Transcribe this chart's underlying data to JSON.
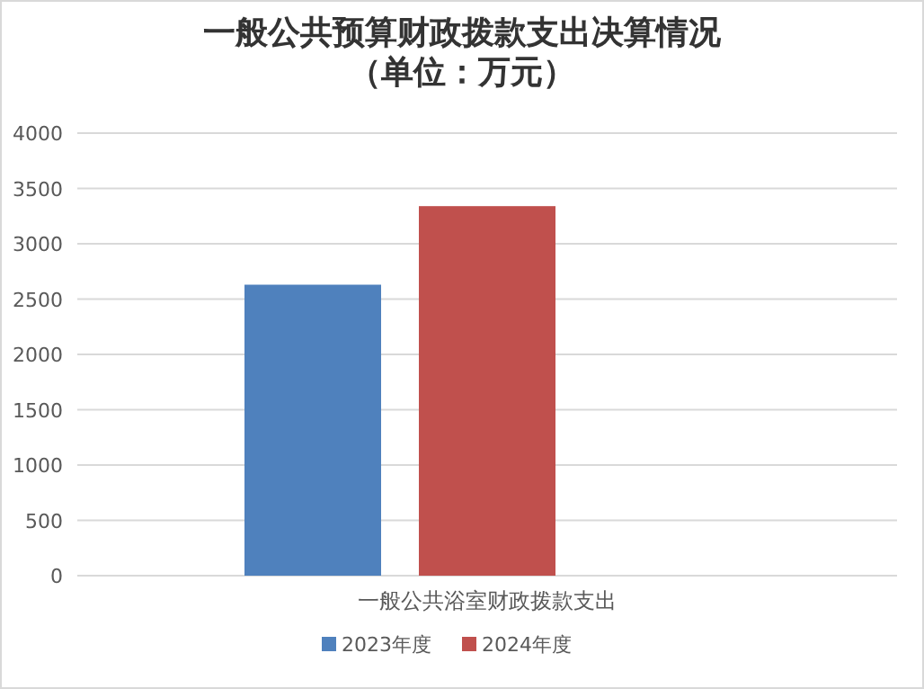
{
  "chart_data": {
    "type": "bar",
    "title": "一般公共预算财政拨款支出决算情况（单位：万元）",
    "categories": [
      "一般公共浴室财政拨款支出"
    ],
    "series": [
      {
        "name": "2023年度",
        "color": "#4f81bd",
        "values": [
          2630
        ]
      },
      {
        "name": "2024年度",
        "color": "#c0504d",
        "values": [
          3340
        ]
      }
    ],
    "ylim": [
      0,
      4000
    ],
    "yticks": [
      0,
      500,
      1000,
      1500,
      2000,
      2500,
      3000,
      3500,
      4000
    ],
    "grid": "y",
    "legend": "bottom"
  }
}
